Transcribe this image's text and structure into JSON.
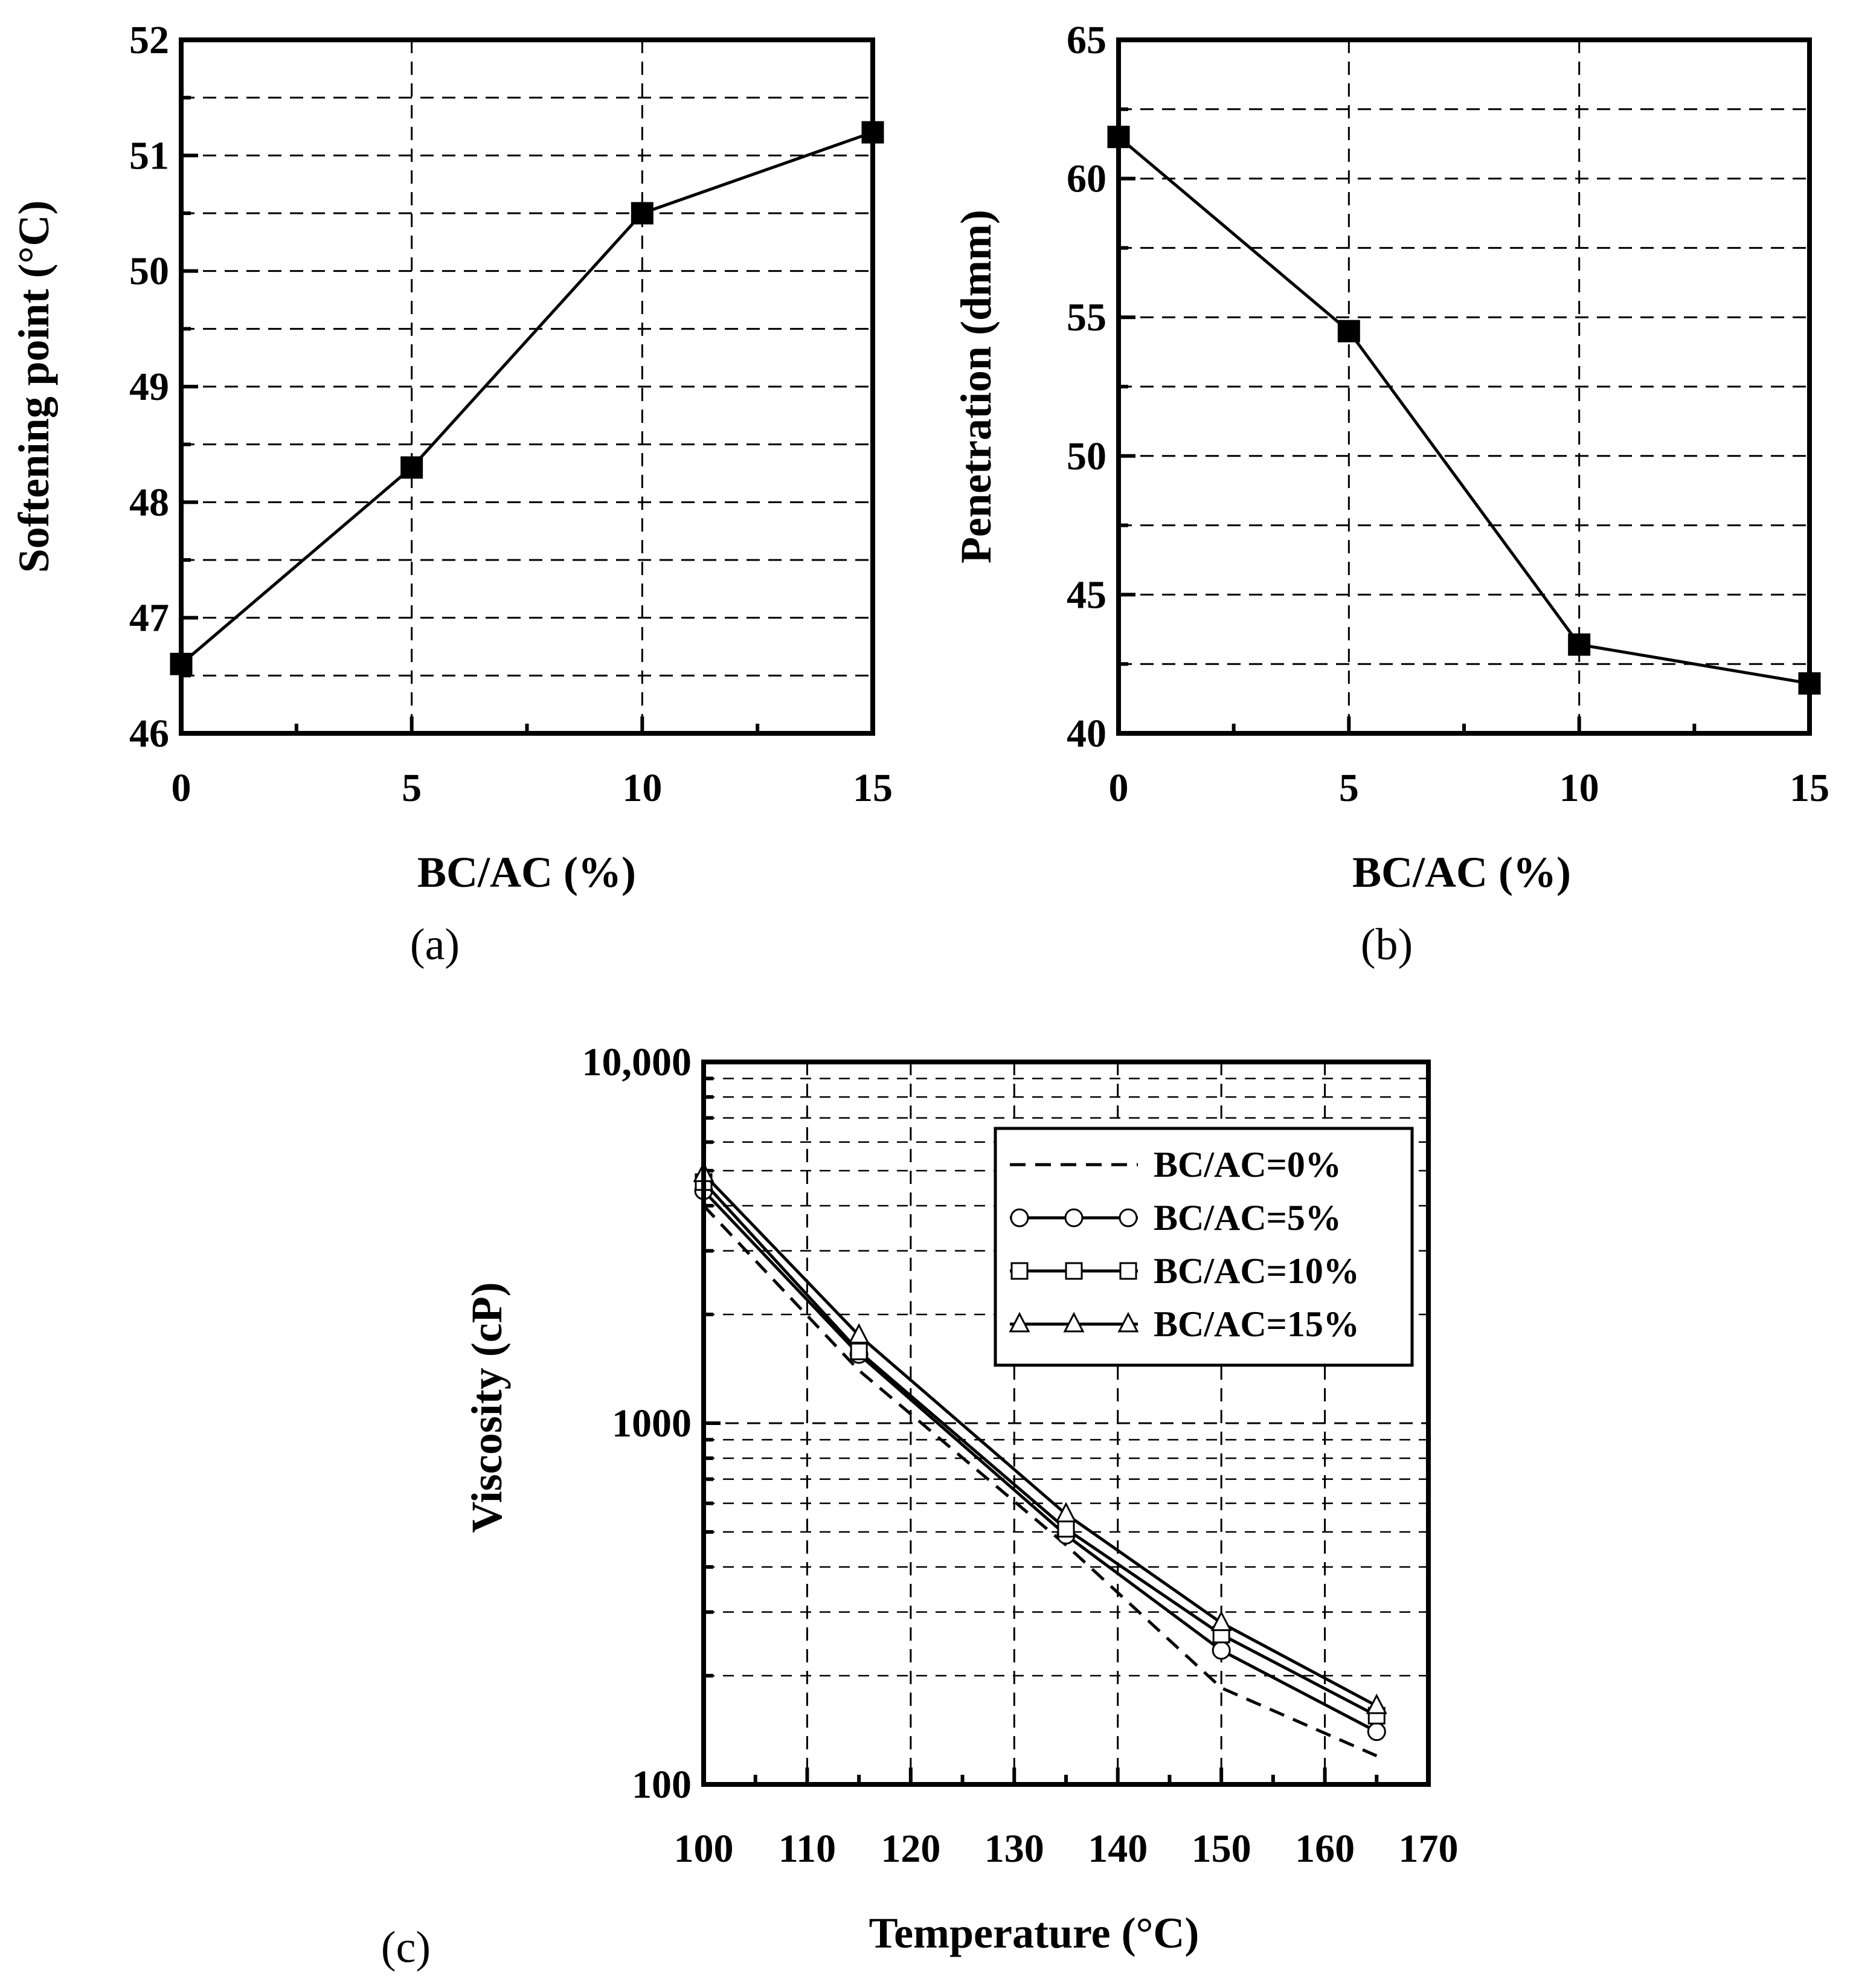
{
  "panels": {
    "a": {
      "label": "(a)",
      "chart_data": {
        "type": "line",
        "xlabel": "BC/AC (%)",
        "ylabel": "Softening point (°C)",
        "x": [
          0,
          5,
          10,
          15
        ],
        "y": [
          46.6,
          48.3,
          50.5,
          51.2
        ],
        "xlim": [
          0,
          15
        ],
        "ylim": [
          46,
          52
        ],
        "xticks": [
          0,
          5,
          10,
          15
        ],
        "xtick_labels": [
          "0",
          "5",
          "10",
          "15"
        ],
        "yticks": [
          46,
          47,
          48,
          49,
          50,
          51,
          52
        ],
        "ytick_labels": [
          "46",
          "47",
          "48",
          "49",
          "50",
          "51",
          "52"
        ],
        "marker": "square-filled",
        "grid": true
      }
    },
    "b": {
      "label": "(b)",
      "chart_data": {
        "type": "line",
        "xlabel": "BC/AC (%)",
        "ylabel": "Penetration (dmm)",
        "x": [
          0,
          5,
          10,
          15
        ],
        "y": [
          61.5,
          54.5,
          43.2,
          41.8
        ],
        "xlim": [
          0,
          15
        ],
        "ylim": [
          40,
          65
        ],
        "xticks": [
          0,
          5,
          10,
          15
        ],
        "xtick_labels": [
          "0",
          "5",
          "10",
          "15"
        ],
        "yticks": [
          40,
          45,
          50,
          55,
          60,
          65
        ],
        "ytick_labels": [
          "40",
          "45",
          "50",
          "55",
          "60",
          "65"
        ],
        "marker": "square-filled",
        "grid": true
      }
    },
    "c": {
      "label": "(c)",
      "chart_data": {
        "type": "line",
        "xlabel": "Temperature (°C)",
        "ylabel": "Viscosity (cP)",
        "yscale": "log",
        "xlim": [
          100,
          170
        ],
        "ylim": [
          100,
          10000
        ],
        "xticks": [
          100,
          110,
          120,
          130,
          140,
          150,
          160,
          170
        ],
        "xtick_labels": [
          "100",
          "110",
          "120",
          "130",
          "140",
          "150",
          "160",
          "170"
        ],
        "yticks": [
          100,
          1000,
          10000
        ],
        "ytick_labels": [
          "100",
          "1000",
          "10,000"
        ],
        "grid": true,
        "legend_position": "top-right",
        "series": [
          {
            "name": "BC/AC=0%",
            "style": "dashed",
            "marker": "none",
            "x": [
              100,
              115,
              135,
              150,
              165
            ],
            "y": [
              4000,
              1400,
              460,
              185,
              120
            ]
          },
          {
            "name": "BC/AC=5%",
            "style": "solid",
            "marker": "circle",
            "x": [
              100,
              115,
              135,
              150,
              165
            ],
            "y": [
              4400,
              1550,
              490,
              235,
              140
            ]
          },
          {
            "name": "BC/AC=10%",
            "style": "solid",
            "marker": "square",
            "x": [
              100,
              115,
              135,
              150,
              165
            ],
            "y": [
              4650,
              1580,
              510,
              260,
              155
            ]
          },
          {
            "name": "BC/AC=15%",
            "style": "solid",
            "marker": "triangle",
            "x": [
              100,
              115,
              135,
              150,
              165
            ],
            "y": [
              4900,
              1750,
              560,
              280,
              165
            ]
          }
        ]
      }
    }
  }
}
